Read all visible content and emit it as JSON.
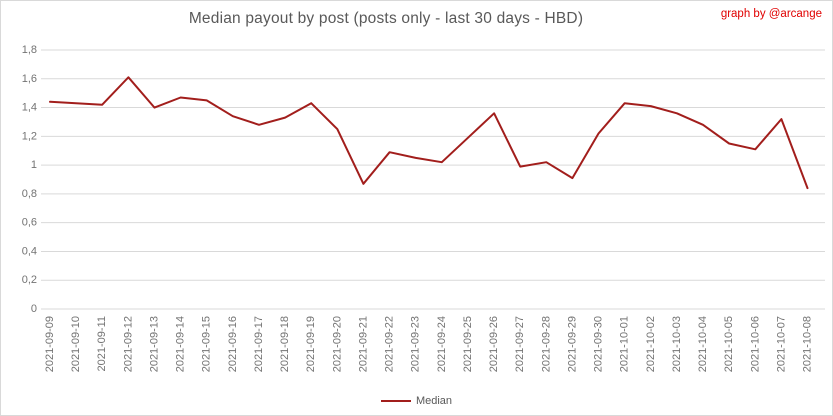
{
  "credit": "graph by @arcange",
  "colors": {
    "line": "#a21e1c",
    "grid": "#d9d9d9",
    "title_text": "#595959",
    "tick_text": "#737373",
    "credit_text": "#e00000",
    "border": "#d9d9d9",
    "background": "#ffffff"
  },
  "legend": {
    "label": "Median"
  },
  "chart_data": {
    "type": "line",
    "title": "Median payout by post (posts only - last 30 days - HBD)",
    "x": [
      "2021-09-09",
      "2021-09-10",
      "2021-09-11",
      "2021-09-12",
      "2021-09-13",
      "2021-09-14",
      "2021-09-15",
      "2021-09-16",
      "2021-09-17",
      "2021-09-18",
      "2021-09-19",
      "2021-09-20",
      "2021-09-21",
      "2021-09-22",
      "2021-09-23",
      "2021-09-24",
      "2021-09-25",
      "2021-09-26",
      "2021-09-27",
      "2021-09-28",
      "2021-09-29",
      "2021-09-30",
      "2021-10-01",
      "2021-10-02",
      "2021-10-03",
      "2021-10-04",
      "2021-10-05",
      "2021-10-06",
      "2021-10-07",
      "2021-10-08"
    ],
    "series": [
      {
        "name": "Median",
        "color": "#a21e1c",
        "values": [
          1.44,
          1.43,
          1.42,
          1.61,
          1.4,
          1.47,
          1.45,
          1.34,
          1.28,
          1.33,
          1.43,
          1.25,
          0.87,
          1.09,
          1.05,
          1.02,
          1.19,
          1.36,
          0.99,
          1.02,
          0.91,
          1.22,
          1.43,
          1.41,
          1.36,
          1.28,
          1.15,
          1.11,
          1.32,
          0.84
        ]
      }
    ],
    "xlabel": "",
    "ylabel": "",
    "ylim": [
      0,
      1.8
    ],
    "ytick_step": 0.2,
    "ytick_labels": [
      "0",
      "0,2",
      "0,4",
      "0,6",
      "0,8",
      "1",
      "1,2",
      "1,4",
      "1,6",
      "1,8"
    ],
    "grid": true,
    "legend_position": "bottom",
    "decimal_separator": ","
  }
}
